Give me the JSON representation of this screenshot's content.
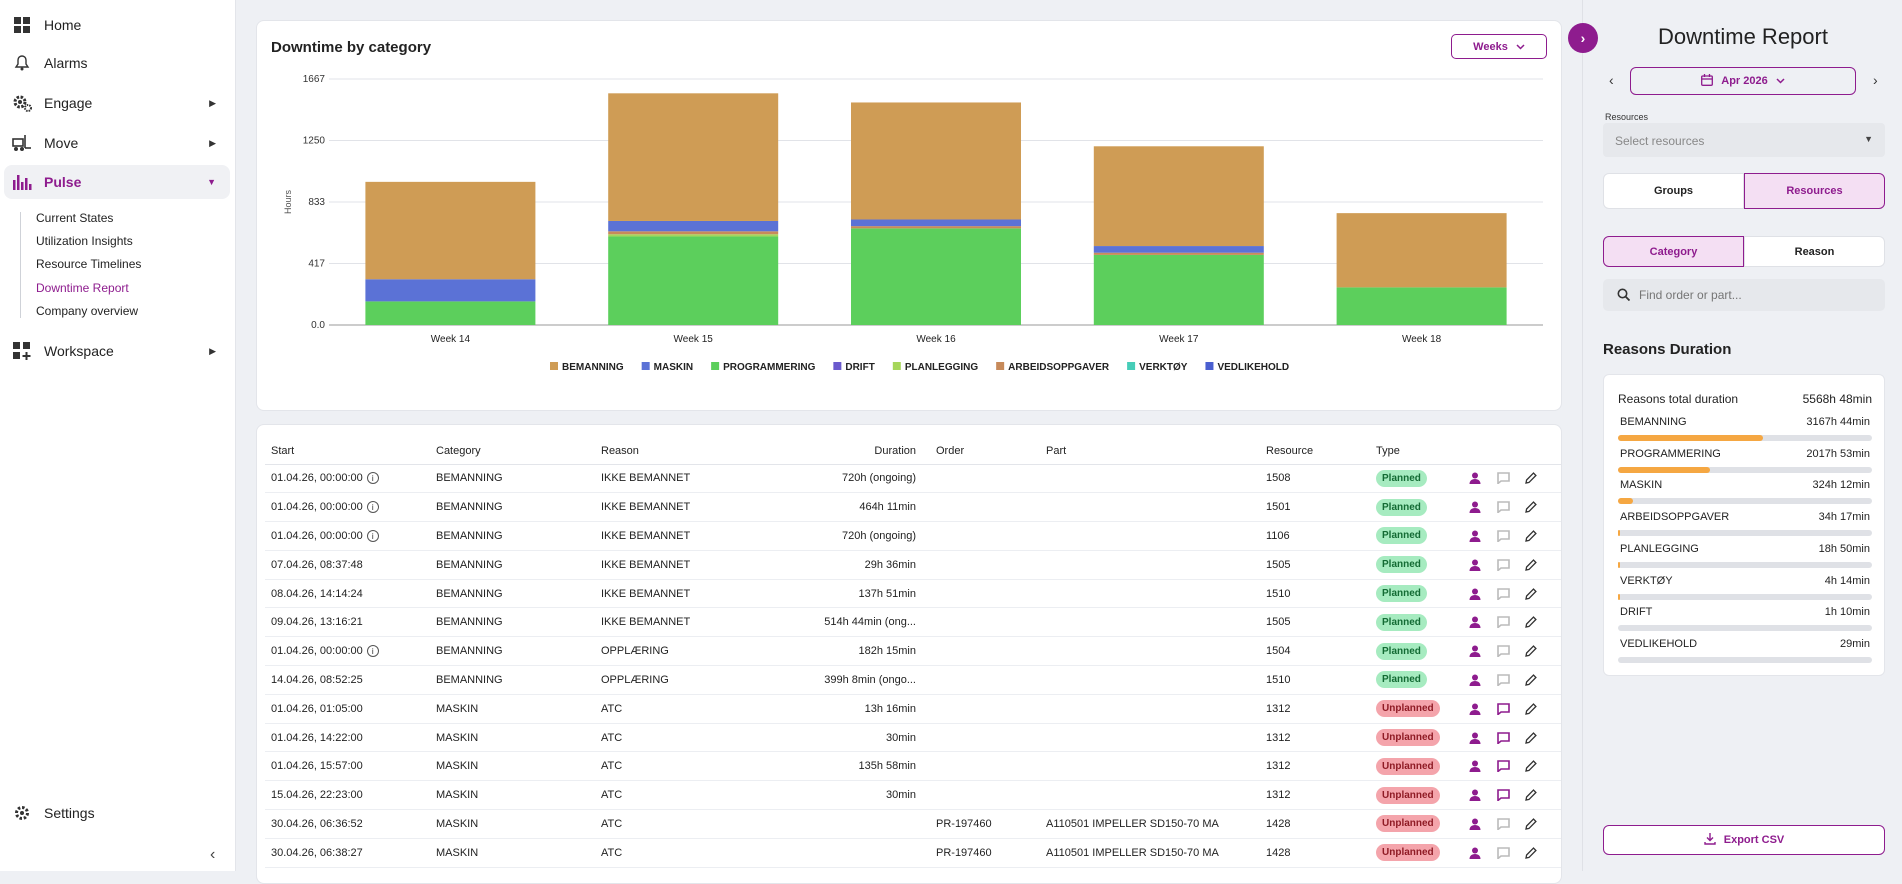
{
  "sidebar": {
    "home": "Home",
    "alarms": "Alarms",
    "engage": "Engage",
    "move": "Move",
    "pulse": "Pulse",
    "pulse_items": [
      "Current States",
      "Utilization Insights",
      "Resource Timelines",
      "Downtime Report",
      "Company overview"
    ],
    "workspace": "Workspace",
    "settings": "Settings"
  },
  "chart": {
    "title": "Downtime by category",
    "period_btn": "Weeks"
  },
  "chart_data": {
    "type": "bar",
    "stacked": true,
    "categories": [
      "Week 14",
      "Week 15",
      "Week 16",
      "Week 17",
      "Week 18"
    ],
    "ylabel": "Hours",
    "yticks": [
      "1667",
      "1250",
      "833",
      "417",
      "0.0"
    ],
    "ylim": [
      0,
      1667
    ],
    "series": [
      {
        "name": "BEMANNING",
        "color": "#cf9c55",
        "values": [
          660,
          865,
          793,
          676,
          503
        ]
      },
      {
        "name": "MASKIN",
        "color": "#5b72d6",
        "values": [
          150,
          70,
          45,
          45,
          0
        ]
      },
      {
        "name": "PROGRAMMERING",
        "color": "#5ccf5c",
        "values": [
          160,
          600,
          655,
          475,
          255
        ]
      },
      {
        "name": "DRIFT",
        "color": "#6a5acd",
        "values": [
          0,
          0,
          0,
          0,
          0
        ]
      },
      {
        "name": "PLANLEGGING",
        "color": "#a6d65a",
        "values": [
          0,
          15,
          0,
          0,
          0
        ]
      },
      {
        "name": "ARBEIDSOPPGAVER",
        "color": "#c78a5a",
        "values": [
          0,
          20,
          15,
          15,
          0
        ]
      },
      {
        "name": "VERKTØY",
        "color": "#46cdb8",
        "values": [
          0,
          0,
          0,
          0,
          0
        ]
      },
      {
        "name": "VEDLIKEHOLD",
        "color": "#4a5fd0",
        "values": [
          0,
          0,
          0,
          0,
          0
        ]
      }
    ]
  },
  "table": {
    "headers": {
      "start": "Start",
      "category": "Category",
      "reason": "Reason",
      "duration": "Duration",
      "order": "Order",
      "part": "Part",
      "resource": "Resource",
      "type": "Type"
    },
    "rows": [
      {
        "start": "01.04.26, 00:00:00",
        "info": true,
        "category": "BEMANNING",
        "reason": "IKKE BEMANNET",
        "duration": "720h (ongoing)",
        "order": "",
        "part": "",
        "resource": "1508",
        "type": "Planned",
        "comment": false
      },
      {
        "start": "01.04.26, 00:00:00",
        "info": true,
        "category": "BEMANNING",
        "reason": "IKKE BEMANNET",
        "duration": "464h 11min",
        "order": "",
        "part": "",
        "resource": "1501",
        "type": "Planned",
        "comment": false
      },
      {
        "start": "01.04.26, 00:00:00",
        "info": true,
        "category": "BEMANNING",
        "reason": "IKKE BEMANNET",
        "duration": "720h (ongoing)",
        "order": "",
        "part": "",
        "resource": "1106",
        "type": "Planned",
        "comment": false
      },
      {
        "start": "07.04.26, 08:37:48",
        "info": false,
        "category": "BEMANNING",
        "reason": "IKKE BEMANNET",
        "duration": "29h 36min",
        "order": "",
        "part": "",
        "resource": "1505",
        "type": "Planned",
        "comment": false
      },
      {
        "start": "08.04.26, 14:14:24",
        "info": false,
        "category": "BEMANNING",
        "reason": "IKKE BEMANNET",
        "duration": "137h 51min",
        "order": "",
        "part": "",
        "resource": "1510",
        "type": "Planned",
        "comment": false
      },
      {
        "start": "09.04.26, 13:16:21",
        "info": false,
        "category": "BEMANNING",
        "reason": "IKKE BEMANNET",
        "duration": "514h 44min (ong...",
        "order": "",
        "part": "",
        "resource": "1505",
        "type": "Planned",
        "comment": false
      },
      {
        "start": "01.04.26, 00:00:00",
        "info": true,
        "category": "BEMANNING",
        "reason": "OPPLÆRING",
        "duration": "182h 15min",
        "order": "",
        "part": "",
        "resource": "1504",
        "type": "Planned",
        "comment": false
      },
      {
        "start": "14.04.26, 08:52:25",
        "info": false,
        "category": "BEMANNING",
        "reason": "OPPLÆRING",
        "duration": "399h 8min (ongo...",
        "order": "",
        "part": "",
        "resource": "1510",
        "type": "Planned",
        "comment": false
      },
      {
        "start": "01.04.26, 01:05:00",
        "info": false,
        "category": "MASKIN",
        "reason": "ATC",
        "duration": "13h 16min",
        "order": "",
        "part": "",
        "resource": "1312",
        "type": "Unplanned",
        "comment": true
      },
      {
        "start": "01.04.26, 14:22:00",
        "info": false,
        "category": "MASKIN",
        "reason": "ATC",
        "duration": "30min",
        "order": "",
        "part": "",
        "resource": "1312",
        "type": "Unplanned",
        "comment": true
      },
      {
        "start": "01.04.26, 15:57:00",
        "info": false,
        "category": "MASKIN",
        "reason": "ATC",
        "duration": "135h 58min",
        "order": "",
        "part": "",
        "resource": "1312",
        "type": "Unplanned",
        "comment": true
      },
      {
        "start": "15.04.26, 22:23:00",
        "info": false,
        "category": "MASKIN",
        "reason": "ATC",
        "duration": "30min",
        "order": "",
        "part": "",
        "resource": "1312",
        "type": "Unplanned",
        "comment": true
      },
      {
        "start": "30.04.26, 06:36:52",
        "info": false,
        "category": "MASKIN",
        "reason": "ATC",
        "duration": "",
        "order": "PR-197460",
        "part": "A110501 IMPELLER SD150-70 MA",
        "resource": "1428",
        "type": "Unplanned",
        "comment": false
      },
      {
        "start": "30.04.26, 06:38:27",
        "info": false,
        "category": "MASKIN",
        "reason": "ATC",
        "duration": "",
        "order": "PR-197460",
        "part": "A110501 IMPELLER SD150-70 MA",
        "resource": "1428",
        "type": "Unplanned",
        "comment": false
      }
    ]
  },
  "panel": {
    "title": "Downtime Report",
    "month": "Apr 2026",
    "resources_label": "Resources",
    "resources_placeholder": "Select resources",
    "groups_label": "Groups",
    "resources_tab": "Resources",
    "category_tab": "Category",
    "reason_tab": "Reason",
    "search_placeholder": "Find order or part...",
    "reasons_title": "Reasons Duration",
    "total_label": "Reasons total duration",
    "total_value": "5568h 48min",
    "reasons": [
      {
        "name": "BEMANNING",
        "value": "3167h 44min",
        "fraction": 0.569
      },
      {
        "name": "PROGRAMMERING",
        "value": "2017h 53min",
        "fraction": 0.362
      },
      {
        "name": "MASKIN",
        "value": "324h 12min",
        "fraction": 0.058
      },
      {
        "name": "ARBEIDSOPPGAVER",
        "value": "34h 17min",
        "fraction": 0.006
      },
      {
        "name": "PLANLEGGING",
        "value": "18h 50min",
        "fraction": 0.003
      },
      {
        "name": "VERKTØY",
        "value": "4h 14min",
        "fraction": 0.001
      },
      {
        "name": "DRIFT",
        "value": "1h 10min",
        "fraction": 0
      },
      {
        "name": "VEDLIKEHOLD",
        "value": "29min",
        "fraction": 0
      }
    ],
    "export_label": "Export CSV"
  }
}
